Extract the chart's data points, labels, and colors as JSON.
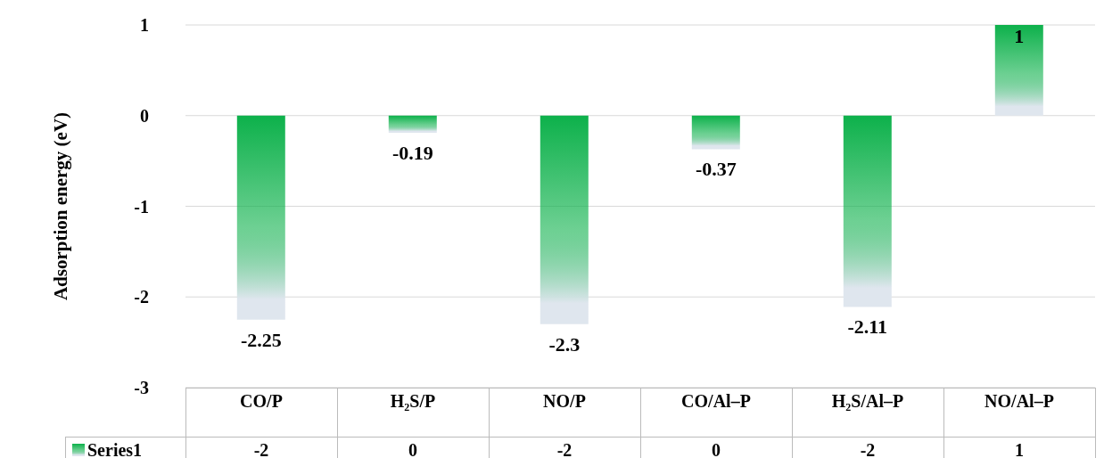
{
  "chart_data": {
    "type": "bar",
    "ylabel": "Adsorption energy (eV)",
    "categories": [
      "CO/P",
      "H₂S/P",
      "NO/P",
      "CO/Al–P",
      "H₂S/Al–P",
      "NO/Al–P"
    ],
    "series": [
      {
        "name": "Series1",
        "color": "#0db14b",
        "values": [
          -2.25,
          -0.19,
          -2.3,
          -0.37,
          -2.11,
          1
        ],
        "value_labels": [
          "-2.25",
          "-0.19",
          "-2.3",
          "-0.37",
          "-2.11",
          "1"
        ]
      }
    ],
    "annotations": [
      "-2",
      "0",
      "-2",
      "0",
      "-2",
      "1"
    ],
    "ylim": [
      -3,
      1
    ],
    "yticks": [
      -3,
      -2,
      -1,
      0,
      1
    ],
    "grid": "y"
  }
}
